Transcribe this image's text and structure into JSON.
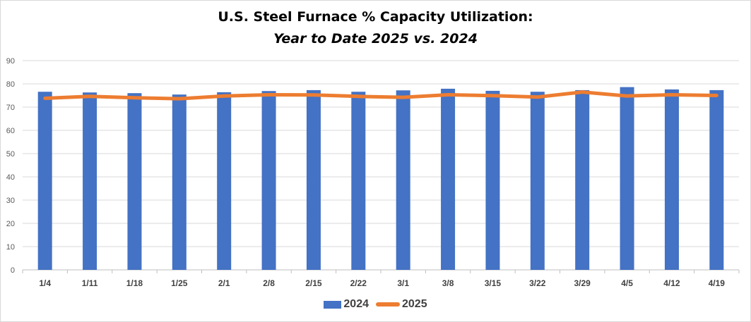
{
  "title_line1": "U.S. Steel Furnace % Capacity Utilization:",
  "title_line2": "Year to Date 2025 vs. 2024",
  "colors": {
    "series_2024": "#4472C4",
    "series_2025": "#ED7D31",
    "grid": "#d9d9d9",
    "tick_text": "#595959"
  },
  "chart_data": {
    "type": "bar",
    "categories": [
      "1/4",
      "1/11",
      "1/18",
      "1/25",
      "2/1",
      "2/8",
      "2/15",
      "2/22",
      "3/1",
      "3/8",
      "3/15",
      "3/22",
      "3/29",
      "4/5",
      "4/12",
      "4/19"
    ],
    "ylim": [
      0,
      90
    ],
    "yticks": [
      0,
      10,
      20,
      30,
      40,
      50,
      60,
      70,
      80,
      90
    ],
    "grid": true,
    "legend_position": "bottom",
    "series": [
      {
        "name": "2024",
        "type": "bar",
        "values": [
          76.6,
          76.3,
          76.0,
          75.4,
          76.4,
          76.9,
          77.3,
          76.6,
          77.2,
          77.9,
          77.0,
          76.6,
          77.3,
          78.6,
          77.6,
          77.3
        ]
      },
      {
        "name": "2025",
        "type": "line",
        "values": [
          73.8,
          74.6,
          74.0,
          73.6,
          74.8,
          75.3,
          75.2,
          74.6,
          74.2,
          75.3,
          74.9,
          74.3,
          76.5,
          74.8,
          75.3,
          75.0
        ]
      }
    ]
  }
}
